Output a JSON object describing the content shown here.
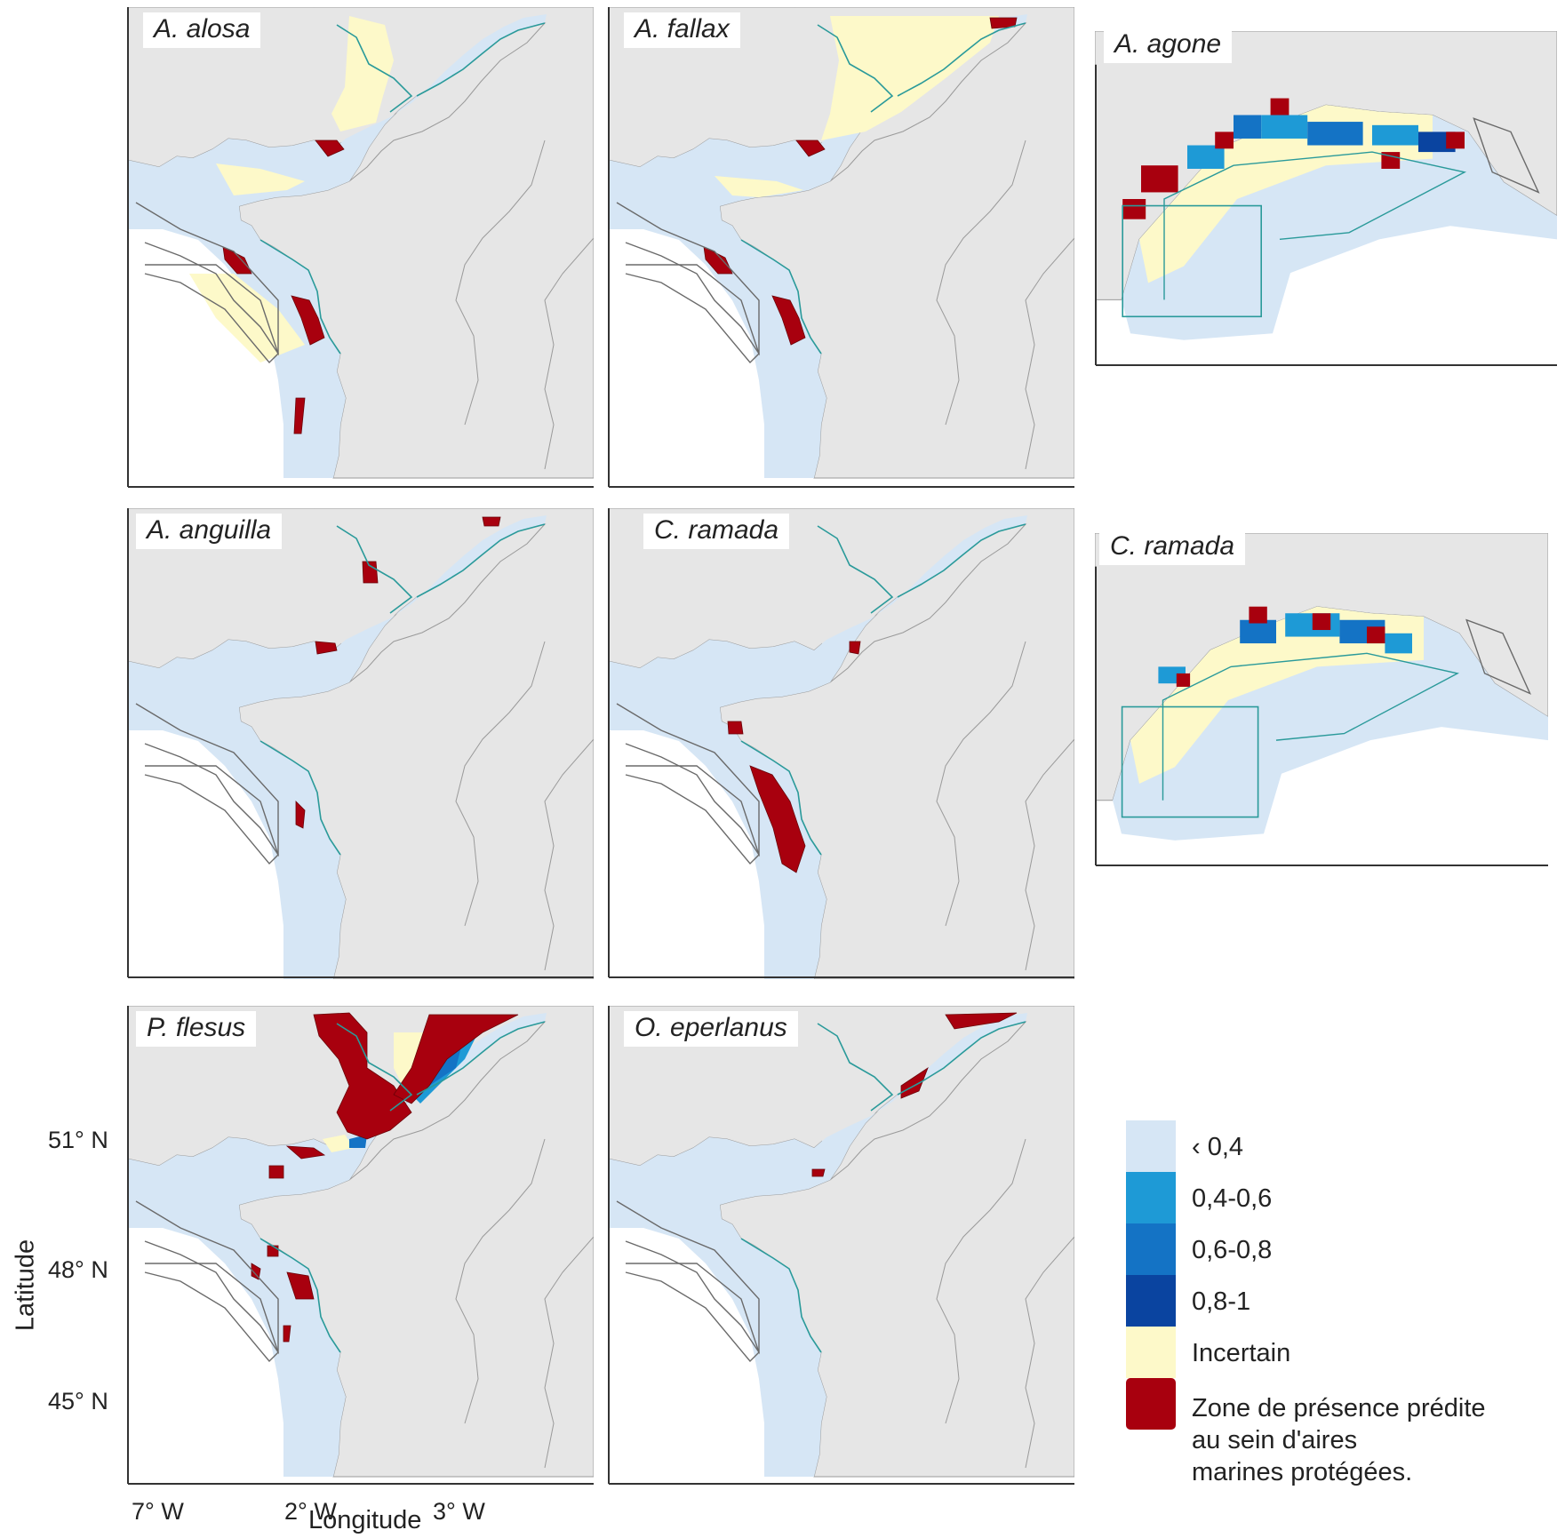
{
  "panels": [
    {
      "species": "A. alosa"
    },
    {
      "species": "A. fallax"
    },
    {
      "species": "A. agone"
    },
    {
      "species": "A. anguilla"
    },
    {
      "species": "C. ramada"
    },
    {
      "species": "C. ramada"
    },
    {
      "species": "P. flesus"
    },
    {
      "species": "O. eperlanus"
    }
  ],
  "axes": {
    "xlabel": "Longitude",
    "ylabel": "Latitude",
    "xticks": [
      "7° W",
      "2° W",
      "3° W"
    ],
    "yticks": [
      "51° N",
      "48° N",
      "45° N"
    ]
  },
  "legend": {
    "items": [
      {
        "label": "‹ 0,4",
        "color": "#d6e6f5"
      },
      {
        "label": "0,4-0,6",
        "color": "#1e9ad6"
      },
      {
        "label": "0,6-0,8",
        "color": "#1473c5"
      },
      {
        "label": "0,8-1",
        "color": "#0a44a0"
      },
      {
        "label": "Incertain",
        "color": "#fdf9c9"
      },
      {
        "label": "Zone de présence prédite\nau sein d'aires\nmarines protégées.",
        "color": "#a8000e"
      }
    ]
  },
  "colors": {
    "land": "#e6e6e6",
    "sea": "#ffffff",
    "mpa_outline_grey": "#6a6a6a",
    "mpa_outline_teal": "#2a9a9a"
  }
}
